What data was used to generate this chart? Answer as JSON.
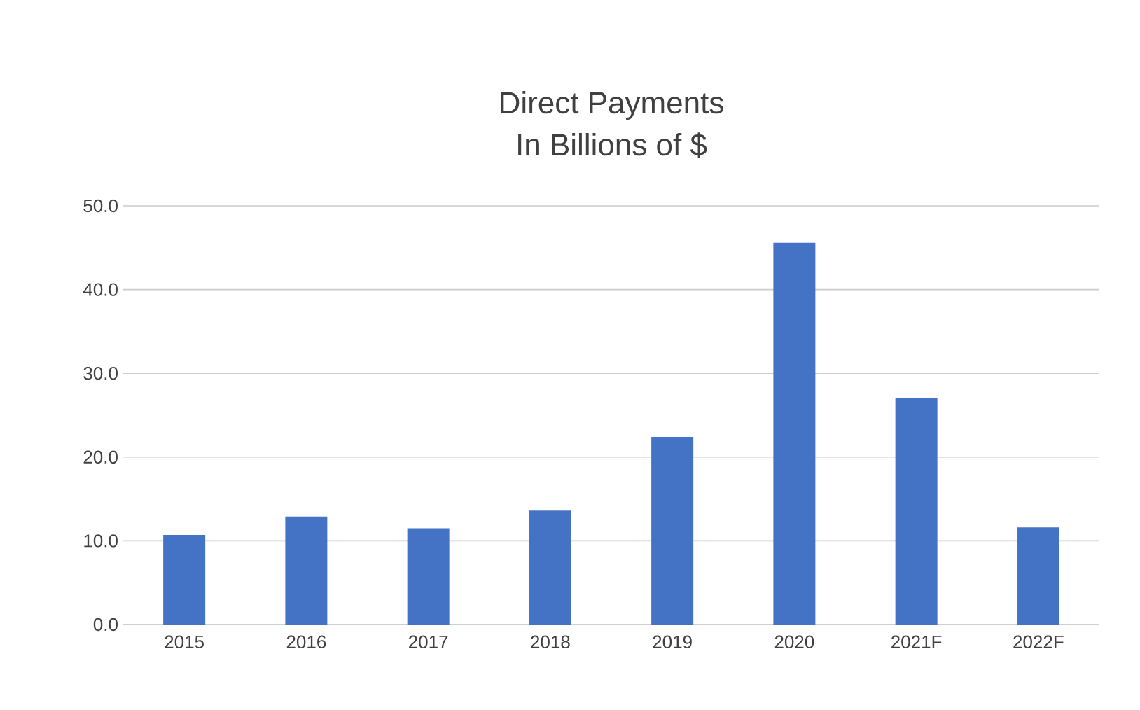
{
  "chart_data": {
    "type": "bar",
    "title": "Direct Payments",
    "subtitle": "In Billions of $",
    "categories": [
      "2015",
      "2016",
      "2017",
      "2018",
      "2019",
      "2020",
      "2021F",
      "2022F"
    ],
    "values": [
      10.7,
      12.9,
      11.5,
      13.6,
      22.4,
      45.6,
      27.1,
      11.6
    ],
    "color": "#4472c4",
    "ylim": [
      0,
      50
    ],
    "yticks": [
      {
        "value": 0,
        "label": "0.0"
      },
      {
        "value": 10,
        "label": "10.0"
      },
      {
        "value": 20,
        "label": "20.0"
      },
      {
        "value": 30,
        "label": "30.0"
      },
      {
        "value": 40,
        "label": "40.0"
      },
      {
        "value": 50,
        "label": "50.0"
      }
    ],
    "grid": "y"
  }
}
